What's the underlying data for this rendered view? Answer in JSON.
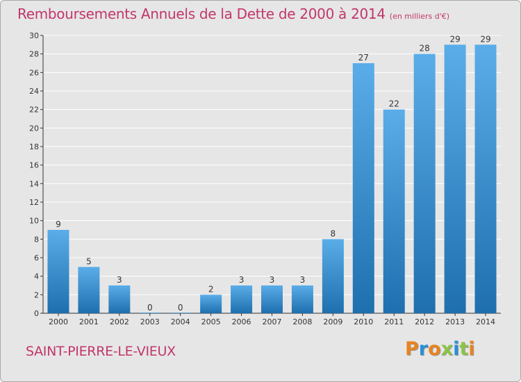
{
  "title": "Remboursements Annuels de la Dette de 2000 à 2014",
  "subtitle": "(en milliers d'€)",
  "commune": "SAINT-PIERRE-LE-VIEUX",
  "logo": {
    "text": "Proxiti",
    "letter_colors": [
      "#e8831f",
      "#2a8fd6",
      "#e8831f",
      "#8bc34a",
      "#2a8fd6",
      "#8bc34a",
      "#e8831f"
    ]
  },
  "colors": {
    "title": "#c2366b",
    "background": "#e6e6e6",
    "bar_light": "#5aade8",
    "bar_dark": "#1e6fae",
    "axis": "#333333"
  },
  "chart_data": {
    "type": "bar",
    "title": "Remboursements Annuels de la Dette de 2000 à 2014",
    "subtitle": "(en milliers d'€)",
    "categories": [
      "2000",
      "2001",
      "2002",
      "2003",
      "2004",
      "2005",
      "2006",
      "2007",
      "2008",
      "2009",
      "2010",
      "2011",
      "2012",
      "2013",
      "2014"
    ],
    "values": [
      9,
      5,
      3,
      0,
      0,
      2,
      3,
      3,
      3,
      8,
      27,
      22,
      28,
      29,
      29
    ],
    "ylim": [
      0,
      30
    ],
    "yticks": [
      0,
      2,
      4,
      6,
      8,
      10,
      12,
      14,
      16,
      18,
      20,
      22,
      24,
      26,
      28,
      30
    ],
    "grid": true,
    "data_labels": true
  }
}
